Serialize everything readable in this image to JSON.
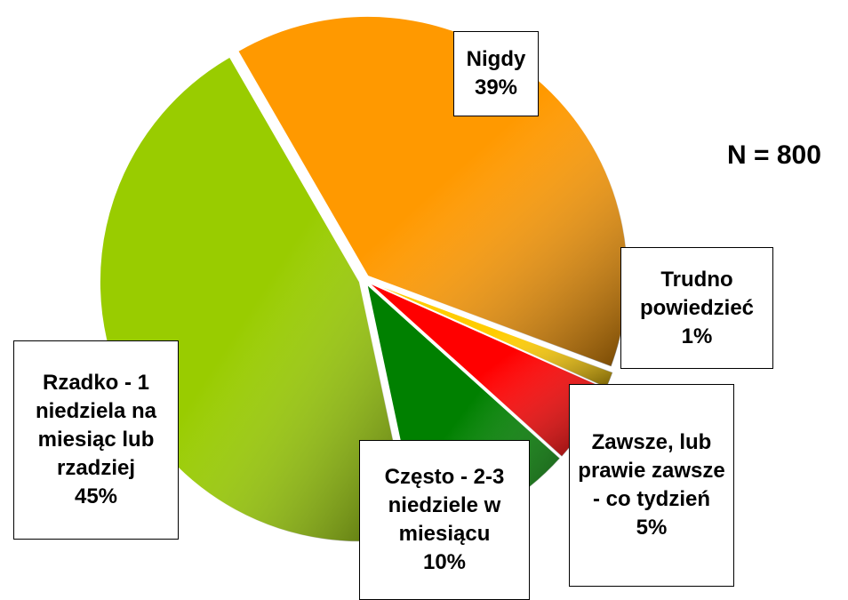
{
  "chart_data": {
    "type": "pie",
    "categories": [
      "Nigdy",
      "Trudno powiedzieć",
      "Zawsze, lub prawie zawsze - co tydzień",
      "Często - 2-3 niedziele w miesiącu",
      "Rzadko - 1 niedziela na miesiąc lub rzadziej"
    ],
    "values": [
      39,
      1,
      5,
      10,
      45
    ],
    "value_labels": [
      "39%",
      "1%",
      "5%",
      "10%",
      "45%"
    ],
    "colors": [
      "#ff9900",
      "#ffcc00",
      "#ff0000",
      "#008000",
      "#99cc00"
    ],
    "annotation": "N = 800"
  }
}
